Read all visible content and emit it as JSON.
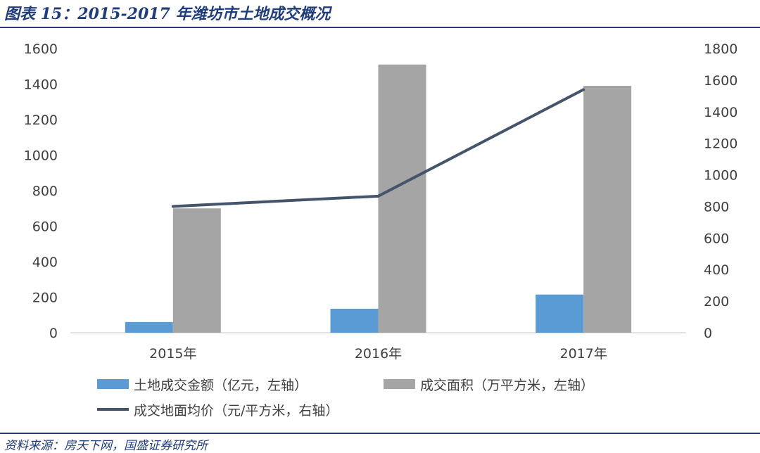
{
  "header": {
    "title": "图表 15：2015-2017 年潍坊市土地成交概况"
  },
  "footer": {
    "source": "资料来源：房天下网，国盛证券研究所"
  },
  "colors": {
    "bar_amount": "#5b9bd5",
    "bar_area": "#a5a5a5",
    "line_price": "#44546a",
    "brand": "#1f3d7a"
  },
  "chart_data": {
    "type": "bar",
    "categories": [
      "2015年",
      "2016年",
      "2017年"
    ],
    "series": [
      {
        "name": "土地成交金额（亿元，左轴）",
        "kind": "bar",
        "axis": "left",
        "values": [
          60,
          135,
          215
        ]
      },
      {
        "name": "成交面积（万平方米，左轴）",
        "kind": "bar",
        "axis": "left",
        "values": [
          700,
          1510,
          1390
        ]
      },
      {
        "name": "成交地面均价（元/平方米，右轴）",
        "kind": "line",
        "axis": "right",
        "values": [
          800,
          865,
          1540
        ]
      }
    ],
    "yleft_ticks": [
      "0",
      "200",
      "400",
      "600",
      "800",
      "1000",
      "1200",
      "1400",
      "1600"
    ],
    "yright_ticks": [
      "0",
      "200",
      "400",
      "600",
      "800",
      "1000",
      "1200",
      "1400",
      "1600",
      "1800"
    ],
    "yleft_lim": [
      0,
      1600
    ],
    "yright_lim": [
      0,
      1800
    ],
    "grid": false,
    "legend_position": "bottom"
  }
}
